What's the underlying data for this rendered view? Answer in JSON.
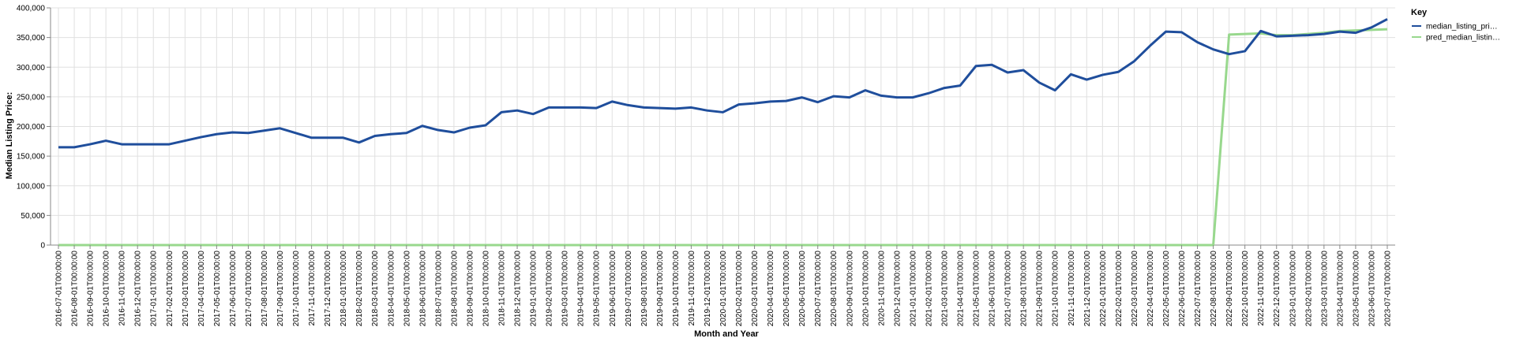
{
  "chart_data": {
    "type": "line",
    "xlabel": "Month and Year",
    "ylabel": "Median Listing Price:",
    "ylim": [
      0,
      400000
    ],
    "y_ticks": [
      0,
      50000,
      100000,
      150000,
      200000,
      250000,
      300000,
      350000,
      400000
    ],
    "y_tick_labels": [
      "0",
      "50,000",
      "100,000",
      "150,000",
      "200,000",
      "250,000",
      "300,000",
      "350,000",
      "400,000"
    ],
    "grid": true,
    "legend": {
      "title": "Key",
      "position": "right",
      "entries": [
        "median_listing_pri…",
        "pred_median_listin…"
      ]
    },
    "x": [
      "2016-07-01T00:00:00",
      "2016-08-01T00:00:00",
      "2016-09-01T00:00:00",
      "2016-10-01T00:00:00",
      "2016-11-01T00:00:00",
      "2016-12-01T00:00:00",
      "2017-01-01T00:00:00",
      "2017-02-01T00:00:00",
      "2017-03-01T00:00:00",
      "2017-04-01T00:00:00",
      "2017-05-01T00:00:00",
      "2017-06-01T00:00:00",
      "2017-07-01T00:00:00",
      "2017-08-01T00:00:00",
      "2017-09-01T00:00:00",
      "2017-10-01T00:00:00",
      "2017-11-01T00:00:00",
      "2017-12-01T00:00:00",
      "2018-01-01T00:00:00",
      "2018-02-01T00:00:00",
      "2018-03-01T00:00:00",
      "2018-04-01T00:00:00",
      "2018-05-01T00:00:00",
      "2018-06-01T00:00:00",
      "2018-07-01T00:00:00",
      "2018-08-01T00:00:00",
      "2018-09-01T00:00:00",
      "2018-10-01T00:00:00",
      "2018-11-01T00:00:00",
      "2018-12-01T00:00:00",
      "2019-01-01T00:00:00",
      "2019-02-01T00:00:00",
      "2019-03-01T00:00:00",
      "2019-04-01T00:00:00",
      "2019-05-01T00:00:00",
      "2019-06-01T00:00:00",
      "2019-07-01T00:00:00",
      "2019-08-01T00:00:00",
      "2019-09-01T00:00:00",
      "2019-10-01T00:00:00",
      "2019-11-01T00:00:00",
      "2019-12-01T00:00:00",
      "2020-01-01T00:00:00",
      "2020-02-01T00:00:00",
      "2020-03-01T00:00:00",
      "2020-04-01T00:00:00",
      "2020-05-01T00:00:00",
      "2020-06-01T00:00:00",
      "2020-07-01T00:00:00",
      "2020-08-01T00:00:00",
      "2020-09-01T00:00:00",
      "2020-10-01T00:00:00",
      "2020-11-01T00:00:00",
      "2020-12-01T00:00:00",
      "2021-01-01T00:00:00",
      "2021-02-01T00:00:00",
      "2021-03-01T00:00:00",
      "2021-04-01T00:00:00",
      "2021-05-01T00:00:00",
      "2021-06-01T00:00:00",
      "2021-07-01T00:00:00",
      "2021-08-01T00:00:00",
      "2021-09-01T00:00:00",
      "2021-10-01T00:00:00",
      "2021-11-01T00:00:00",
      "2021-12-01T00:00:00",
      "2022-01-01T00:00:00",
      "2022-02-01T00:00:00",
      "2022-03-01T00:00:00",
      "2022-04-01T00:00:00",
      "2022-05-01T00:00:00",
      "2022-06-01T00:00:00",
      "2022-07-01T00:00:00",
      "2022-08-01T00:00:00",
      "2022-09-01T00:00:00",
      "2022-10-01T00:00:00",
      "2022-11-01T00:00:00",
      "2022-12-01T00:00:00",
      "2023-01-01T00:00:00",
      "2023-02-01T00:00:00",
      "2023-03-01T00:00:00",
      "2023-04-01T00:00:00",
      "2023-05-01T00:00:00",
      "2023-06-01T00:00:00",
      "2023-07-01T00:00:00"
    ],
    "series": [
      {
        "name": "median_listing_pri…",
        "color": "#1f4e9c",
        "values": [
          165000,
          165000,
          170000,
          176000,
          170000,
          170000,
          170000,
          170000,
          176000,
          182000,
          187000,
          190000,
          189000,
          193000,
          197000,
          189000,
          181000,
          181000,
          181000,
          173000,
          184000,
          187000,
          189000,
          201000,
          194000,
          190000,
          198000,
          202000,
          224000,
          227000,
          221000,
          232000,
          232000,
          232000,
          231000,
          242000,
          236000,
          232000,
          231000,
          230000,
          232000,
          227000,
          224000,
          237000,
          239000,
          242000,
          243000,
          249000,
          241000,
          251000,
          249000,
          261000,
          252000,
          249000,
          249000,
          256000,
          265000,
          269000,
          302000,
          304000,
          291000,
          295000,
          274000,
          261000,
          288000,
          279000,
          287000,
          292000,
          310000,
          336000,
          360000,
          359000,
          342000,
          330000,
          322000,
          327000,
          361000,
          352000,
          353000,
          354000,
          356000,
          360000,
          358000,
          367000,
          381000
        ]
      },
      {
        "name": "pred_median_listin…",
        "color": "#98d88d",
        "values": [
          0,
          0,
          0,
          0,
          0,
          0,
          0,
          0,
          0,
          0,
          0,
          0,
          0,
          0,
          0,
          0,
          0,
          0,
          0,
          0,
          0,
          0,
          0,
          0,
          0,
          0,
          0,
          0,
          0,
          0,
          0,
          0,
          0,
          0,
          0,
          0,
          0,
          0,
          0,
          0,
          0,
          0,
          0,
          0,
          0,
          0,
          0,
          0,
          0,
          0,
          0,
          0,
          0,
          0,
          0,
          0,
          0,
          0,
          0,
          0,
          0,
          0,
          0,
          0,
          0,
          0,
          0,
          0,
          0,
          0,
          0,
          0,
          0,
          0,
          355000,
          356000,
          357000,
          354000,
          354000,
          356000,
          358000,
          361000,
          362000,
          363000,
          364000
        ]
      }
    ]
  }
}
